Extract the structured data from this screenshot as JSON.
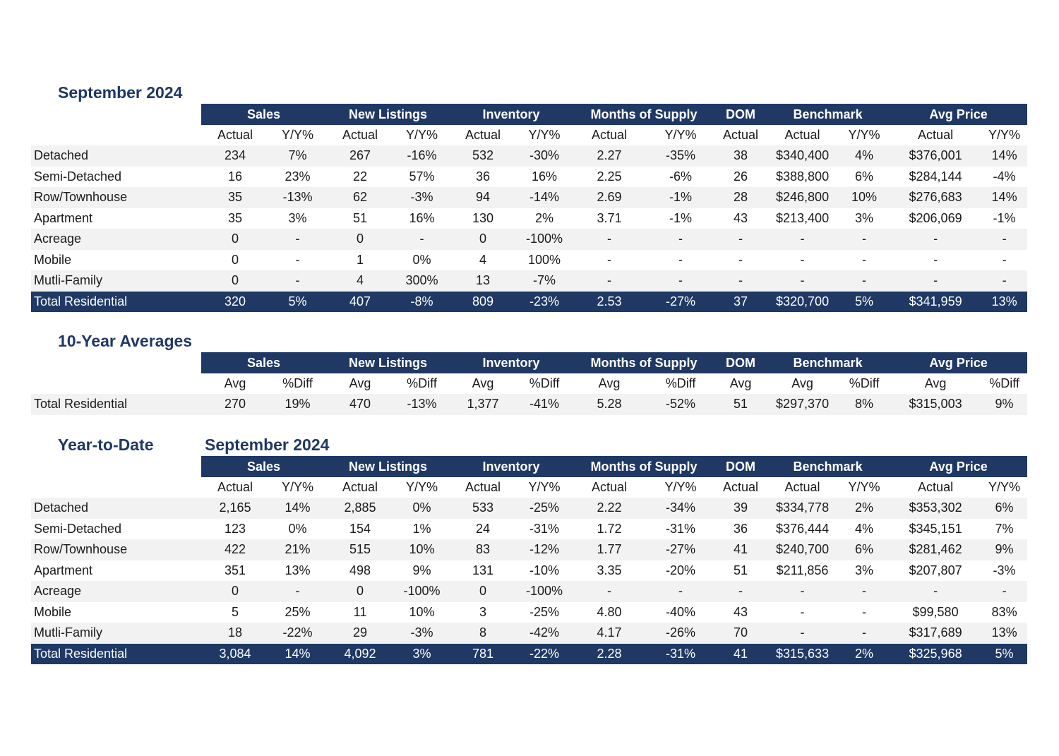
{
  "groups": [
    "Sales",
    "New Listings",
    "Inventory",
    "Months of Supply",
    "DOM",
    "Benchmark",
    "Avg Price"
  ],
  "monthly": {
    "title": "September 2024",
    "subheaders": [
      "Actual",
      "Y/Y%",
      "Actual",
      "Y/Y%",
      "Actual",
      "Y/Y%",
      "Actual",
      "Y/Y%",
      "Actual",
      "Actual",
      "Y/Y%",
      "Actual",
      "Y/Y%"
    ],
    "rows": [
      {
        "label": "Detached",
        "values": [
          "234",
          "7%",
          "267",
          "-16%",
          "532",
          "-30%",
          "2.27",
          "-35%",
          "38",
          "$340,400",
          "4%",
          "$376,001",
          "14%"
        ]
      },
      {
        "label": "Semi-Detached",
        "values": [
          "16",
          "23%",
          "22",
          "57%",
          "36",
          "16%",
          "2.25",
          "-6%",
          "26",
          "$388,800",
          "6%",
          "$284,144",
          "-4%"
        ]
      },
      {
        "label": "Row/Townhouse",
        "values": [
          "35",
          "-13%",
          "62",
          "-3%",
          "94",
          "-14%",
          "2.69",
          "-1%",
          "28",
          "$246,800",
          "10%",
          "$276,683",
          "14%"
        ]
      },
      {
        "label": "Apartment",
        "values": [
          "35",
          "3%",
          "51",
          "16%",
          "130",
          "2%",
          "3.71",
          "-1%",
          "43",
          "$213,400",
          "3%",
          "$206,069",
          "-1%"
        ]
      },
      {
        "label": "Acreage",
        "values": [
          "0",
          "-",
          "0",
          "-",
          "0",
          "-100%",
          "-",
          "-",
          "-",
          "-",
          "-",
          "-",
          "-"
        ]
      },
      {
        "label": "Mobile",
        "values": [
          "0",
          "-",
          "1",
          "0%",
          "4",
          "100%",
          "-",
          "-",
          "-",
          "-",
          "-",
          "-",
          "-"
        ]
      },
      {
        "label": "Mutli-Family",
        "values": [
          "0",
          "-",
          "4",
          "300%",
          "13",
          "-7%",
          "-",
          "-",
          "-",
          "-",
          "-",
          "-",
          "-"
        ]
      }
    ],
    "total": {
      "label": "Total Residential",
      "values": [
        "320",
        "5%",
        "407",
        "-8%",
        "809",
        "-23%",
        "2.53",
        "-27%",
        "37",
        "$320,700",
        "5%",
        "$341,959",
        "13%"
      ]
    }
  },
  "averages": {
    "title": "10-Year Averages",
    "subheaders": [
      "Avg",
      "%Diff",
      "Avg",
      "%Diff",
      "Avg",
      "%Diff",
      "Avg",
      "%Diff",
      "Avg",
      "Avg",
      "%Diff",
      "Avg",
      "%Diff"
    ],
    "rows": [
      {
        "label": "Total Residential",
        "values": [
          "270",
          "19%",
          "470",
          "-13%",
          "1,377",
          "-41%",
          "5.28",
          "-52%",
          "51",
          "$297,370",
          "8%",
          "$315,003",
          "9%"
        ]
      }
    ]
  },
  "ytd": {
    "title": "Year-to-Date",
    "subtitle": "September 2024",
    "subheaders": [
      "Actual",
      "Y/Y%",
      "Actual",
      "Y/Y%",
      "Actual",
      "Y/Y%",
      "Actual",
      "Y/Y%",
      "Actual",
      "Actual",
      "Y/Y%",
      "Actual",
      "Y/Y%"
    ],
    "rows": [
      {
        "label": "Detached",
        "values": [
          "2,165",
          "14%",
          "2,885",
          "0%",
          "533",
          "-25%",
          "2.22",
          "-34%",
          "39",
          "$334,778",
          "2%",
          "$353,302",
          "6%"
        ]
      },
      {
        "label": "Semi-Detached",
        "values": [
          "123",
          "0%",
          "154",
          "1%",
          "24",
          "-31%",
          "1.72",
          "-31%",
          "36",
          "$376,444",
          "4%",
          "$345,151",
          "7%"
        ]
      },
      {
        "label": "Row/Townhouse",
        "values": [
          "422",
          "21%",
          "515",
          "10%",
          "83",
          "-12%",
          "1.77",
          "-27%",
          "41",
          "$240,700",
          "6%",
          "$281,462",
          "9%"
        ]
      },
      {
        "label": "Apartment",
        "values": [
          "351",
          "13%",
          "498",
          "9%",
          "131",
          "-10%",
          "3.35",
          "-20%",
          "51",
          "$211,856",
          "3%",
          "$207,807",
          "-3%"
        ]
      },
      {
        "label": "Acreage",
        "values": [
          "0",
          "-",
          "0",
          "-100%",
          "0",
          "-100%",
          "-",
          "-",
          "-",
          "-",
          "-",
          "-",
          "-"
        ]
      },
      {
        "label": "Mobile",
        "values": [
          "5",
          "25%",
          "11",
          "10%",
          "3",
          "-25%",
          "4.80",
          "-40%",
          "43",
          "-",
          "-",
          "$99,580",
          "83%"
        ]
      },
      {
        "label": "Mutli-Family",
        "values": [
          "18",
          "-22%",
          "29",
          "-3%",
          "8",
          "-42%",
          "4.17",
          "-26%",
          "70",
          "-",
          "-",
          "$317,689",
          "13%"
        ]
      }
    ],
    "total": {
      "label": "Total Residential",
      "values": [
        "3,084",
        "14%",
        "4,092",
        "3%",
        "781",
        "-22%",
        "2.28",
        "-31%",
        "41",
        "$315,633",
        "2%",
        "$325,968",
        "5%"
      ]
    }
  }
}
